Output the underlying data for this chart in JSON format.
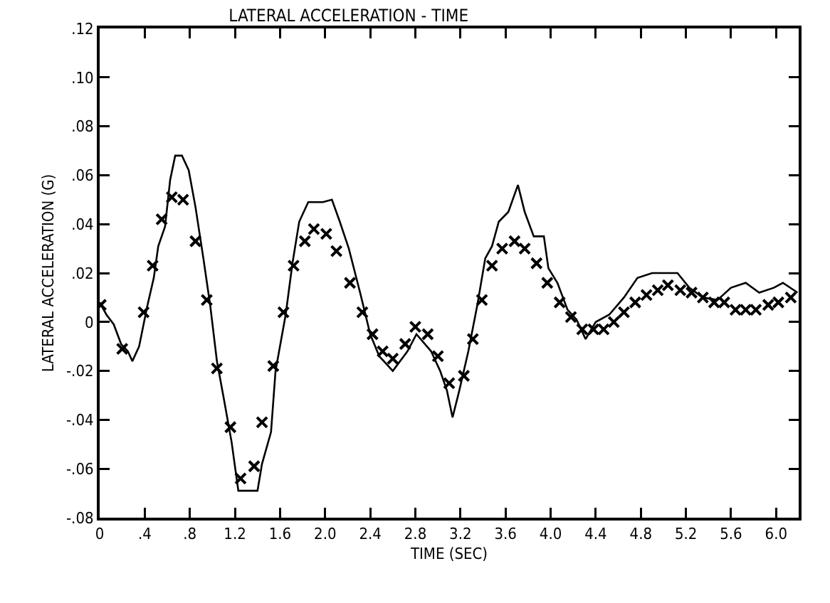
{
  "chart_data": {
    "type": "line",
    "title": "LATERAL ACCELERATION - TIME",
    "xlabel": "TIME (SEC)",
    "ylabel": "LATERAL ACCELERATION (G)",
    "xlim": [
      0,
      6.2
    ],
    "ylim": [
      -0.08,
      0.12
    ],
    "xticks": [
      0,
      {
        "value": 0.4,
        "label": ".4"
      },
      {
        "value": 0.8,
        "label": ".8"
      },
      1.2,
      1.6,
      {
        "value": 2.0,
        "label": "2.0"
      },
      2.4,
      2.8,
      3.2,
      3.6,
      {
        "value": 4.0,
        "label": "4.0"
      },
      4.4,
      4.8,
      5.2,
      5.6,
      {
        "value": 6.0,
        "label": "6.0"
      }
    ],
    "yticks": [
      {
        "value": -0.08,
        "label": "-.08"
      },
      {
        "value": -0.06,
        "label": "-.06"
      },
      {
        "value": -0.04,
        "label": "-.04"
      },
      {
        "value": -0.02,
        "label": "-.02"
      },
      0,
      {
        "value": 0.02,
        "label": ".02"
      },
      {
        "value": 0.04,
        "label": ".04"
      },
      {
        "value": 0.06,
        "label": ".06"
      },
      {
        "value": 0.08,
        "label": ".08"
      },
      {
        "value": 0.1,
        "label": ".10"
      },
      {
        "value": 0.12,
        "label": ".12"
      }
    ],
    "grid": false,
    "series": [
      {
        "color": "#000000",
        "marker": "none",
        "line_style": "solid",
        "x": [
          0,
          0.06,
          0.125,
          0.19,
          0.25,
          0.29,
          0.35,
          0.42,
          0.48,
          0.52,
          0.58,
          0.625,
          0.67,
          0.73,
          0.79,
          0.85,
          0.92,
          0.98,
          1.04,
          1.1,
          1.17,
          1.23,
          1.29,
          1.4,
          1.44,
          1.52,
          1.56,
          1.65,
          1.71,
          1.77,
          1.85,
          1.98,
          2.06,
          2.13,
          2.21,
          2.31,
          2.4,
          2.48,
          2.6,
          2.73,
          2.81,
          2.94,
          3.02,
          3.08,
          3.13,
          3.19,
          3.27,
          3.35,
          3.42,
          3.48,
          3.54,
          3.625,
          3.71,
          3.77,
          3.85,
          3.94,
          3.98,
          4.06,
          4.15,
          4.23,
          4.31,
          4.4,
          4.52,
          4.65,
          4.77,
          4.9,
          5.02,
          5.125,
          5.23,
          5.35,
          5.48,
          5.6,
          5.73,
          5.85,
          5.98,
          6.06,
          6.19
        ],
        "values": [
          0.008,
          0.003,
          -0.001,
          -0.009,
          -0.012,
          -0.016,
          -0.01,
          0.006,
          0.018,
          0.031,
          0.039,
          0.058,
          0.068,
          0.068,
          0.062,
          0.047,
          0.026,
          0.007,
          -0.016,
          -0.031,
          -0.049,
          -0.069,
          -0.069,
          -0.069,
          -0.058,
          -0.045,
          -0.02,
          0.003,
          0.024,
          0.041,
          0.049,
          0.049,
          0.05,
          0.041,
          0.03,
          0.012,
          -0.005,
          -0.014,
          -0.02,
          -0.012,
          -0.005,
          -0.012,
          -0.02,
          -0.028,
          -0.039,
          -0.028,
          -0.012,
          0.007,
          0.026,
          0.031,
          0.041,
          0.045,
          0.056,
          0.045,
          0.035,
          0.035,
          0.022,
          0.016,
          0.005,
          0.001,
          -0.007,
          0,
          0.003,
          0.01,
          0.018,
          0.02,
          0.02,
          0.02,
          0.014,
          0.01,
          0.009,
          0.014,
          0.016,
          0.012,
          0.014,
          0.016,
          0.012
        ]
      },
      {
        "type": "scatter",
        "color": "#000000",
        "marker": "cross",
        "x": [
          0.01,
          0.2,
          0.39,
          0.47,
          0.55,
          0.64,
          0.74,
          0.85,
          0.95,
          1.04,
          1.16,
          1.25,
          1.37,
          1.44,
          1.54,
          1.63,
          1.72,
          1.82,
          1.9,
          2.01,
          2.1,
          2.22,
          2.33,
          2.42,
          2.51,
          2.6,
          2.71,
          2.8,
          2.91,
          3.0,
          3.1,
          3.23,
          3.31,
          3.39,
          3.48,
          3.57,
          3.68,
          3.77,
          3.875,
          3.97,
          4.08,
          4.18,
          4.28,
          4.38,
          4.47,
          4.56,
          4.65,
          4.75,
          4.85,
          4.95,
          5.04,
          5.15,
          5.25,
          5.35,
          5.45,
          5.54,
          5.64,
          5.73,
          5.82,
          5.93,
          6.02,
          6.13
        ],
        "values": [
          0.007,
          -0.011,
          0.004,
          0.023,
          0.042,
          0.051,
          0.05,
          0.033,
          0.009,
          -0.019,
          -0.043,
          -0.064,
          -0.059,
          -0.041,
          -0.018,
          0.004,
          0.023,
          0.033,
          0.038,
          0.036,
          0.029,
          0.016,
          0.004,
          -0.005,
          -0.012,
          -0.015,
          -0.009,
          -0.002,
          -0.005,
          -0.014,
          -0.025,
          -0.022,
          -0.007,
          0.009,
          0.023,
          0.03,
          0.033,
          0.03,
          0.024,
          0.016,
          0.008,
          0.002,
          -0.003,
          -0.003,
          -0.003,
          0,
          0.004,
          0.008,
          0.011,
          0.013,
          0.015,
          0.013,
          0.012,
          0.01,
          0.008,
          0.008,
          0.005,
          0.005,
          0.005,
          0.007,
          0.008,
          0.01
        ]
      }
    ]
  }
}
